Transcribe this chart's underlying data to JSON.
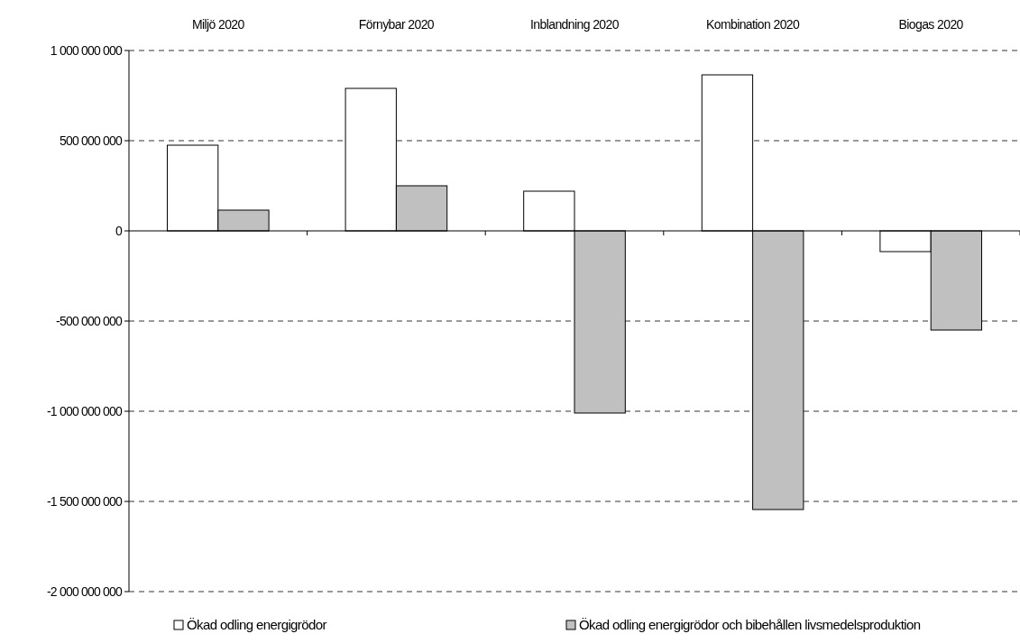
{
  "chart_data": {
    "type": "bar",
    "categories": [
      "Miljö 2020",
      "Förnybar 2020",
      "Inblandning 2020",
      "Kombination 2020",
      "Biogas 2020"
    ],
    "series": [
      {
        "name": "Ökad odling energigrödor",
        "color": "#ffffff",
        "values": [
          475000000,
          790000000,
          220000000,
          865000000,
          -115000000
        ]
      },
      {
        "name": "Ökad odling energigrödor och bibehållen livsmedelsproduktion",
        "color": "#c0c0c0",
        "values": [
          115000000,
          250000000,
          -1010000000,
          -1545000000,
          -550000000
        ]
      }
    ],
    "ylim": [
      -2000000000,
      1000000000
    ],
    "yticks": [
      {
        "value": -2000000000,
        "label": "-2 000 000 000"
      },
      {
        "value": -1500000000,
        "label": "-1 500 000 000"
      },
      {
        "value": -1000000000,
        "label": "-1 000 000 000"
      },
      {
        "value": -500000000,
        "label": "-500 000 000"
      },
      0,
      {
        "value": 500000000,
        "label": "500 000 000"
      },
      {
        "value": 1000000000,
        "label": "1 000 000 000"
      }
    ],
    "grid": "y",
    "legend": "bottom"
  }
}
